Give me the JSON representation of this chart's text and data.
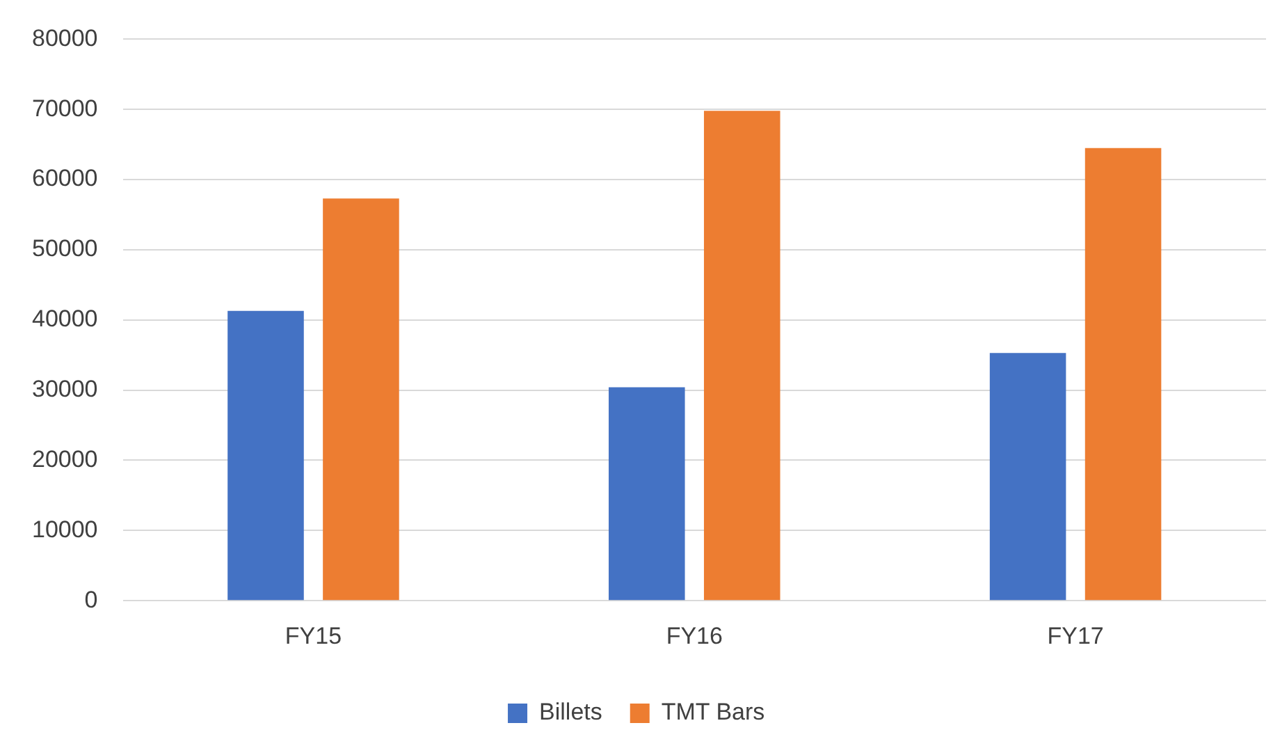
{
  "chart_data": {
    "type": "bar",
    "categories": [
      "FY15",
      "FY16",
      "FY17"
    ],
    "series": [
      {
        "name": "Billets",
        "color": "#4472c4",
        "values": [
          41300,
          30400,
          35300
        ]
      },
      {
        "name": "TMT Bars",
        "color": "#ed7d31",
        "values": [
          57300,
          69800,
          64500
        ]
      }
    ],
    "ylim": [
      0,
      80000
    ],
    "yticks": [
      0,
      10000,
      20000,
      30000,
      40000,
      50000,
      60000,
      70000,
      80000
    ],
    "grid": "y",
    "legend": "bottom"
  }
}
